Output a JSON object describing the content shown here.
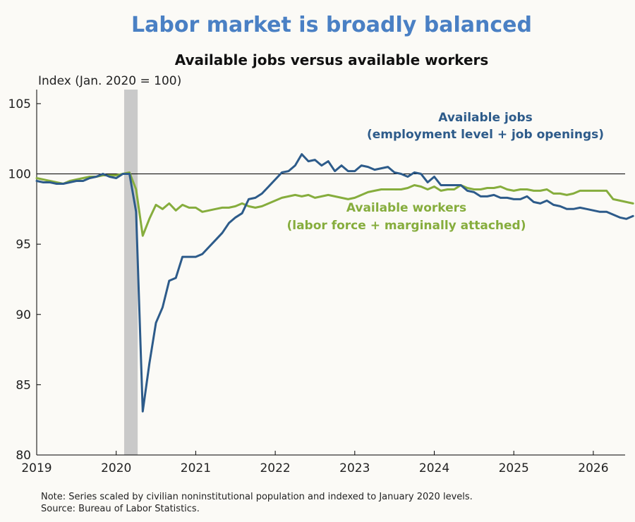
{
  "colors": {
    "title": "#4a80c4",
    "jobs": "#2d5b8a",
    "workers": "#86ad3d",
    "recession": "#c9c9c9",
    "axis": "#000000"
  },
  "footnote": {
    "line1": "Note: Series scaled by civilian noninstitutional population and indexed to January 2020 levels.",
    "line2": "Source: Bureau of Labor Statistics."
  },
  "chart_data": {
    "type": "line",
    "title": "Labor market is broadly balanced",
    "subtitle": "Available jobs versus available workers",
    "ylabel": "Index (Jan. 2020 = 100)",
    "xlabel": "",
    "ylim": [
      80,
      106
    ],
    "xlim": [
      2019.0,
      2026.4
    ],
    "yticks": [
      80,
      85,
      90,
      95,
      100,
      105
    ],
    "xticks": [
      2019,
      2020,
      2021,
      2022,
      2023,
      2024,
      2025,
      2026
    ],
    "reference_line": 100,
    "shaded_region": {
      "from": 2020.1,
      "to": 2020.27
    },
    "grid": false,
    "series": [
      {
        "key": "jobs",
        "name_line1": "Available jobs",
        "name_line2": "(employment level + job openings)",
        "x_start": 2019.0,
        "x_step": 0.08333,
        "values": [
          99.5,
          99.4,
          99.4,
          99.3,
          99.3,
          99.4,
          99.5,
          99.5,
          99.7,
          99.8,
          100.0,
          99.8,
          99.7,
          100.0,
          100.0,
          97.3,
          83.1,
          86.5,
          89.4,
          90.5,
          92.4,
          92.6,
          94.1,
          94.1,
          94.1,
          94.3,
          94.8,
          95.3,
          95.8,
          96.5,
          96.9,
          97.2,
          98.2,
          98.3,
          98.6,
          99.1,
          99.6,
          100.1,
          100.2,
          100.6,
          101.4,
          100.9,
          101.0,
          100.6,
          100.9,
          100.2,
          100.6,
          100.2,
          100.2,
          100.6,
          100.5,
          100.3,
          100.4,
          100.5,
          100.1,
          100.0,
          99.8,
          100.1,
          100.0,
          99.4,
          99.8,
          99.2,
          99.2,
          99.2,
          99.2,
          98.8,
          98.7,
          98.4,
          98.4,
          98.5,
          98.3,
          98.3,
          98.2,
          98.2,
          98.4,
          98.0,
          97.9,
          98.1,
          97.8,
          97.7,
          97.5,
          97.5,
          97.6,
          97.5,
          97.4,
          97.3,
          97.3,
          97.1,
          96.9,
          96.8,
          97.0
        ]
      },
      {
        "key": "workers",
        "name_line1": "Available workers",
        "name_line2": "(labor force + marginally attached)",
        "x_start": 2019.0,
        "x_step": 0.08333,
        "values": [
          99.7,
          99.6,
          99.5,
          99.4,
          99.3,
          99.5,
          99.6,
          99.7,
          99.8,
          99.8,
          99.9,
          99.9,
          99.9,
          100.0,
          100.1,
          98.9,
          95.6,
          96.8,
          97.8,
          97.5,
          97.9,
          97.4,
          97.8,
          97.6,
          97.6,
          97.3,
          97.4,
          97.5,
          97.6,
          97.6,
          97.7,
          97.9,
          97.7,
          97.6,
          97.7,
          97.9,
          98.1,
          98.3,
          98.4,
          98.5,
          98.4,
          98.5,
          98.3,
          98.4,
          98.5,
          98.4,
          98.3,
          98.2,
          98.3,
          98.5,
          98.7,
          98.8,
          98.9,
          98.9,
          98.9,
          98.9,
          99.0,
          99.2,
          99.1,
          98.9,
          99.1,
          98.8,
          98.9,
          98.9,
          99.2,
          99.0,
          98.9,
          98.9,
          99.0,
          99.0,
          99.1,
          98.9,
          98.8,
          98.9,
          98.9,
          98.8,
          98.8,
          98.9,
          98.6,
          98.6,
          98.5,
          98.6,
          98.8,
          98.8,
          98.8,
          98.8,
          98.8,
          98.2,
          98.1,
          98.0,
          97.9
        ]
      }
    ]
  }
}
